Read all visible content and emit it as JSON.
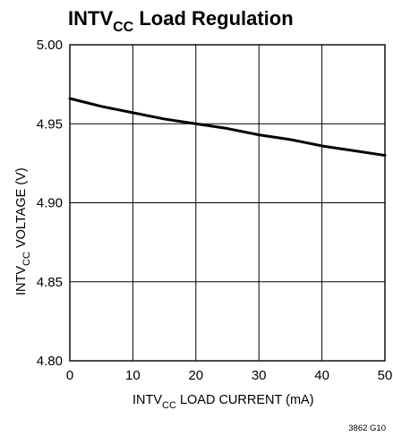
{
  "chart_data": {
    "type": "line",
    "title_main": "INTV",
    "title_sub": "CC",
    "title_rest": " Load Regulation",
    "xlabel_main": "INTV",
    "xlabel_sub": "CC",
    "xlabel_rest": " LOAD CURRENT (mA)",
    "ylabel_main": "INTV",
    "ylabel_sub": "CC",
    "ylabel_rest": " VOLTAGE (V)",
    "xlim": [
      0,
      50
    ],
    "ylim": [
      4.8,
      5.0
    ],
    "xticks": [
      0,
      10,
      20,
      30,
      40,
      50
    ],
    "xtick_labels": [
      "0",
      "10",
      "20",
      "30",
      "40",
      "50"
    ],
    "yticks": [
      4.8,
      4.85,
      4.9,
      4.95,
      5.0
    ],
    "ytick_labels": [
      "4.80",
      "4.85",
      "4.90",
      "4.95",
      "5.00"
    ],
    "grid": true,
    "note": "3862 G10",
    "series": [
      {
        "x": [
          0,
          5,
          10,
          15,
          20,
          25,
          30,
          35,
          40,
          45,
          50
        ],
        "y": [
          4.966,
          4.961,
          4.957,
          4.953,
          4.95,
          4.947,
          4.943,
          4.94,
          4.936,
          4.933,
          4.93
        ]
      }
    ]
  }
}
